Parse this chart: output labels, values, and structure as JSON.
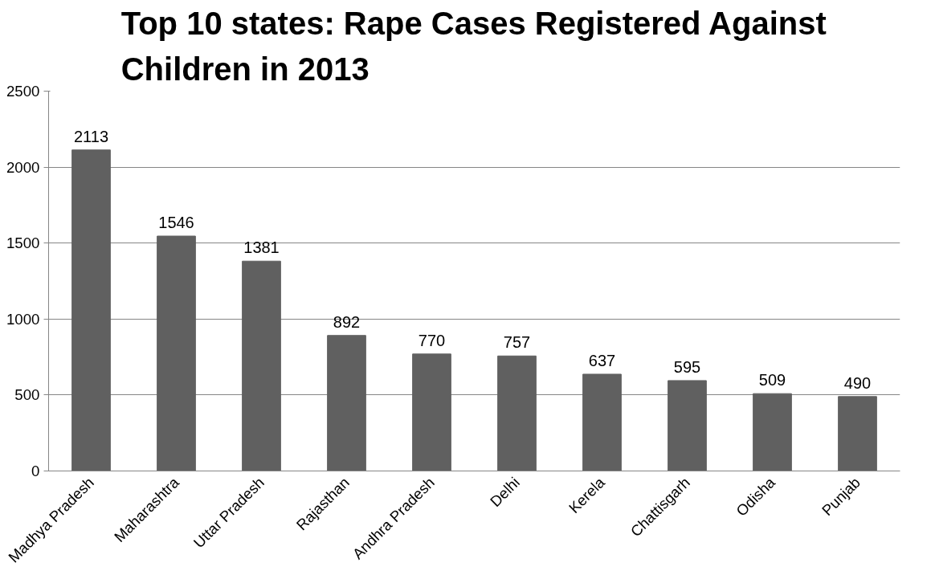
{
  "chart_data": {
    "type": "bar",
    "title": "Top 10 states: Rape Cases Registered Against Children in 2013",
    "categories": [
      "Madhya Pradesh",
      "Maharashtra",
      "Uttar Pradesh",
      "Rajasthan",
      "Andhra Pradesh",
      "Delhi",
      "Kerela",
      "Chattisgarh",
      "Odisha",
      "Punjab"
    ],
    "values": [
      2113,
      1546,
      1381,
      892,
      770,
      757,
      637,
      595,
      509,
      490
    ],
    "color": "#606060",
    "ylim": [
      0,
      2500
    ],
    "yticks": [
      0,
      500,
      1000,
      1500,
      2000,
      2500
    ],
    "grid": "y",
    "data_labels": true
  }
}
